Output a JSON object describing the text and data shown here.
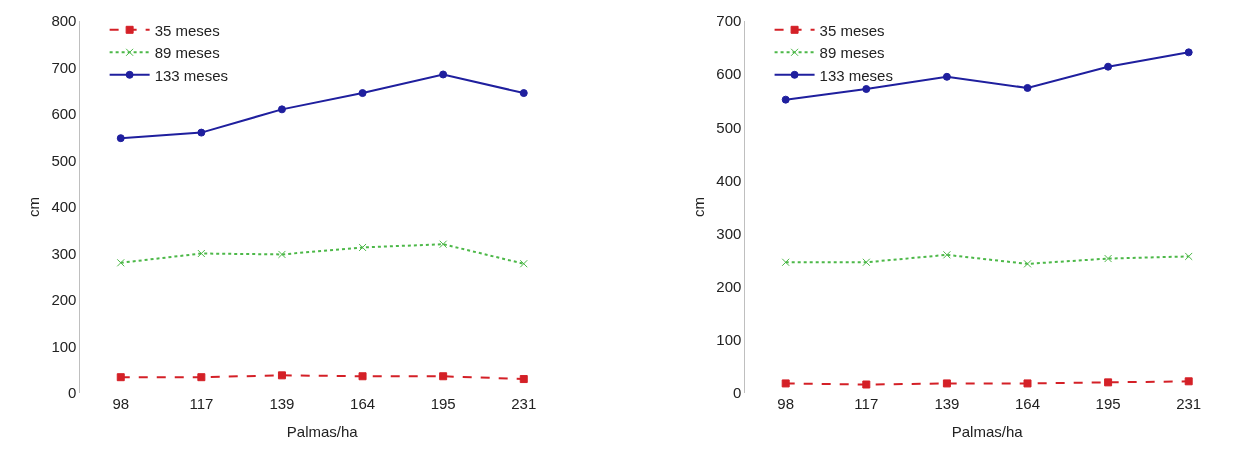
{
  "chart_data": [
    {
      "type": "line",
      "xlabel": "Palmas/ha",
      "ylabel": "cm",
      "categories": [
        "98",
        "117",
        "139",
        "164",
        "195",
        "231"
      ],
      "ylim": [
        0,
        800
      ],
      "yticks": [
        0,
        100,
        200,
        300,
        400,
        500,
        600,
        700,
        800
      ],
      "legend": "top left",
      "series": [
        {
          "name": "35 meses",
          "color": "#d42027",
          "marker": "square",
          "line_style": "dashed",
          "values": [
            34,
            34,
            38,
            36,
            36,
            30
          ]
        },
        {
          "name": "89 meses",
          "color": "#4cb848",
          "marker": "cross",
          "line_style": "dotted",
          "values": [
            280,
            300,
            298,
            313,
            320,
            278
          ]
        },
        {
          "name": "133 meses",
          "color": "#1f1f9e",
          "marker": "circle",
          "line_style": "solid",
          "values": [
            548,
            560,
            610,
            645,
            685,
            645
          ]
        }
      ]
    },
    {
      "type": "line",
      "xlabel": "Palmas/ha",
      "ylabel": "cm",
      "categories": [
        "98",
        "117",
        "139",
        "164",
        "195",
        "231"
      ],
      "ylim": [
        0,
        700
      ],
      "yticks": [
        0,
        100,
        200,
        300,
        400,
        500,
        600,
        700
      ],
      "legend": "top left",
      "series": [
        {
          "name": "35 meses",
          "color": "#d42027",
          "marker": "square",
          "line_style": "dashed",
          "values": [
            18,
            16,
            18,
            18,
            20,
            22
          ]
        },
        {
          "name": "89 meses",
          "color": "#4cb848",
          "marker": "cross",
          "line_style": "dotted",
          "values": [
            246,
            246,
            260,
            243,
            253,
            257
          ]
        },
        {
          "name": "133 meses",
          "color": "#1f1f9e",
          "marker": "circle",
          "line_style": "solid",
          "values": [
            552,
            572,
            595,
            574,
            614,
            641
          ]
        }
      ]
    }
  ]
}
